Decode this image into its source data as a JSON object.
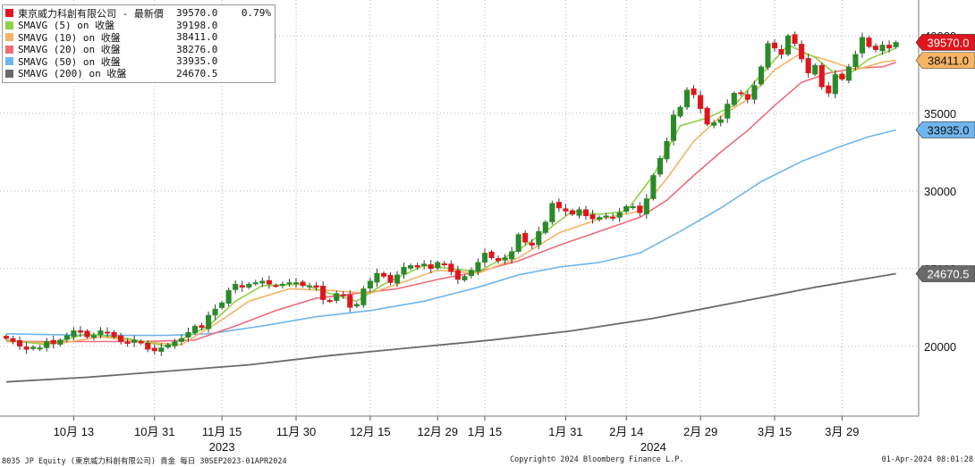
{
  "legend": [
    {
      "name": "東京威力科創有限公司 - 最新價",
      "value": "39570.0",
      "change": "0.79%",
      "color": "#e0161c"
    },
    {
      "name": "SMAVG (5)  on 收盤",
      "value": "39198.0",
      "color": "#8fd146"
    },
    {
      "name": "SMAVG (10)  on 收盤",
      "value": "38411.0",
      "color": "#f6b464"
    },
    {
      "name": "SMAVG (20)  on 收盤",
      "value": "38276.0",
      "color": "#ef6b78"
    },
    {
      "name": "SMAVG (50)  on 收盤",
      "value": "33935.0",
      "color": "#6fb6ee"
    },
    {
      "name": "SMAVG (200)  on 收盤",
      "value": "24670.5",
      "color": "#6a6a6a"
    }
  ],
  "footer": {
    "left": "8035 JP Equity (東京威力科創有限公司) 貴金  每日 30SEP2023-01APR2024",
    "center": "Copyright© 2024 Bloomberg Finance L.P.",
    "right": "01-Apr-2024 08:01:28"
  },
  "chart_data": {
    "type": "candlestick",
    "ylim": [
      15500,
      42300
    ],
    "yticks": [
      20000,
      25000,
      30000,
      35000,
      40000
    ],
    "grid": true,
    "legend_position": "top-left",
    "up_color": "#2a8a2a",
    "down_color": "#e0161c",
    "x_ticks": [
      {
        "label": "10月 13",
        "i": 10
      },
      {
        "label": "10月 31",
        "i": 22
      },
      {
        "label": "11月 15",
        "i": 32
      },
      {
        "label": "11月 30",
        "i": 43
      },
      {
        "label": "12月 15",
        "i": 54
      },
      {
        "label": "12月 29",
        "i": 64
      },
      {
        "label": "1月 15",
        "i": 71
      },
      {
        "label": "1月 31",
        "i": 83
      },
      {
        "label": "2月 14",
        "i": 92
      },
      {
        "label": "2月 29",
        "i": 103
      },
      {
        "label": "3月 15",
        "i": 114
      },
      {
        "label": "3月 29",
        "i": 124
      }
    ],
    "x_year_labels": [
      {
        "label": "2023",
        "i": 32
      },
      {
        "label": "2024",
        "i": 96
      }
    ],
    "closes": [
      20500,
      20300,
      20000,
      19800,
      19950,
      19900,
      20300,
      20150,
      20400,
      20700,
      21000,
      20900,
      20600,
      20700,
      21000,
      20900,
      20600,
      20300,
      20200,
      20400,
      20200,
      19800,
      19700,
      19900,
      20100,
      20300,
      20500,
      20900,
      21300,
      21200,
      22000,
      22400,
      22800,
      23600,
      24000,
      23800,
      24000,
      24100,
      24200,
      24000,
      23900,
      24000,
      24100,
      24100,
      23900,
      23900,
      23800,
      23000,
      22900,
      23400,
      23300,
      22500,
      22700,
      23700,
      24200,
      24700,
      24500,
      24100,
      24600,
      25100,
      25200,
      25100,
      25300,
      25000,
      25400,
      25300,
      24800,
      24300,
      24500,
      24900,
      25400,
      26000,
      25700,
      25500,
      25700,
      26100,
      27200,
      26700,
      26500,
      27400,
      28000,
      29200,
      28900,
      28700,
      28500,
      28800,
      28400,
      28200,
      28300,
      28400,
      28300,
      28600,
      29000,
      29000,
      28600,
      29500,
      31000,
      32100,
      33200,
      34900,
      35400,
      36500,
      36200,
      35300,
      34300,
      34400,
      34600,
      35600,
      36300,
      36300,
      35900,
      36800,
      38000,
      39500,
      39200,
      38800,
      40000,
      39500,
      38500,
      37600,
      38100,
      36700,
      36300,
      37500,
      37200,
      38000,
      38800,
      39900,
      39300,
      39100,
      39400,
      39200,
      39570
    ],
    "sma": {
      "sma5": [
        [
          0,
          20400
        ],
        [
          6,
          20100
        ],
        [
          12,
          20800
        ],
        [
          18,
          20500
        ],
        [
          24,
          20000
        ],
        [
          30,
          21300
        ],
        [
          34,
          22900
        ],
        [
          38,
          23900
        ],
        [
          44,
          24000
        ],
        [
          48,
          23400
        ],
        [
          52,
          22900
        ],
        [
          56,
          24000
        ],
        [
          62,
          25200
        ],
        [
          66,
          25000
        ],
        [
          70,
          24800
        ],
        [
          76,
          26200
        ],
        [
          80,
          27400
        ],
        [
          84,
          28700
        ],
        [
          88,
          28500
        ],
        [
          92,
          28700
        ],
        [
          96,
          31000
        ],
        [
          100,
          34200
        ],
        [
          104,
          34700
        ],
        [
          108,
          35500
        ],
        [
          112,
          37500
        ],
        [
          116,
          39400
        ],
        [
          120,
          38600
        ],
        [
          124,
          37200
        ],
        [
          128,
          38500
        ],
        [
          132,
          39198
        ]
      ],
      "sma10": [
        [
          0,
          20300
        ],
        [
          8,
          20200
        ],
        [
          14,
          20600
        ],
        [
          20,
          20300
        ],
        [
          26,
          20100
        ],
        [
          32,
          21700
        ],
        [
          36,
          22900
        ],
        [
          42,
          23700
        ],
        [
          48,
          23600
        ],
        [
          54,
          23400
        ],
        [
          58,
          24000
        ],
        [
          64,
          24900
        ],
        [
          70,
          24700
        ],
        [
          76,
          25700
        ],
        [
          82,
          27300
        ],
        [
          88,
          28200
        ],
        [
          94,
          28700
        ],
        [
          98,
          30800
        ],
        [
          102,
          33200
        ],
        [
          106,
          34800
        ],
        [
          110,
          35900
        ],
        [
          114,
          37800
        ],
        [
          118,
          38900
        ],
        [
          122,
          38400
        ],
        [
          126,
          37800
        ],
        [
          130,
          38300
        ],
        [
          132,
          38411
        ]
      ],
      "sma20": [
        [
          0,
          20300
        ],
        [
          10,
          20300
        ],
        [
          20,
          20300
        ],
        [
          28,
          20400
        ],
        [
          34,
          21300
        ],
        [
          40,
          22300
        ],
        [
          46,
          23100
        ],
        [
          52,
          23400
        ],
        [
          58,
          23700
        ],
        [
          64,
          24300
        ],
        [
          70,
          24800
        ],
        [
          76,
          25500
        ],
        [
          82,
          26500
        ],
        [
          88,
          27400
        ],
        [
          94,
          28300
        ],
        [
          98,
          29400
        ],
        [
          102,
          31000
        ],
        [
          106,
          32500
        ],
        [
          110,
          33900
        ],
        [
          114,
          35500
        ],
        [
          118,
          37000
        ],
        [
          122,
          37600
        ],
        [
          126,
          37900
        ],
        [
          130,
          38000
        ],
        [
          132,
          38276
        ]
      ],
      "sma50": [
        [
          0,
          20800
        ],
        [
          12,
          20700
        ],
        [
          24,
          20700
        ],
        [
          30,
          20800
        ],
        [
          38,
          21300
        ],
        [
          46,
          21900
        ],
        [
          54,
          22300
        ],
        [
          62,
          22900
        ],
        [
          70,
          23800
        ],
        [
          76,
          24600
        ],
        [
          82,
          25100
        ],
        [
          88,
          25400
        ],
        [
          94,
          26000
        ],
        [
          100,
          27400
        ],
        [
          106,
          28900
        ],
        [
          112,
          30600
        ],
        [
          118,
          31900
        ],
        [
          124,
          32900
        ],
        [
          128,
          33500
        ],
        [
          132,
          33935
        ]
      ],
      "sma200": [
        [
          0,
          17700
        ],
        [
          12,
          18000
        ],
        [
          24,
          18400
        ],
        [
          36,
          18800
        ],
        [
          48,
          19400
        ],
        [
          60,
          19900
        ],
        [
          72,
          20400
        ],
        [
          84,
          21000
        ],
        [
          96,
          21800
        ],
        [
          108,
          22800
        ],
        [
          120,
          23800
        ],
        [
          132,
          24670.5
        ]
      ]
    },
    "badges": [
      {
        "value": "39570.0",
        "color": "#e0161c",
        "text_color": "#ffffff"
      },
      {
        "value": "38411.0",
        "color": "#f6b464",
        "text_color": "#111111"
      },
      {
        "value": "33935.0",
        "color": "#6fb6ee",
        "text_color": "#111111"
      },
      {
        "value": "24670.5",
        "color": "#6a6a6a",
        "text_color": "#ffffff"
      }
    ]
  }
}
